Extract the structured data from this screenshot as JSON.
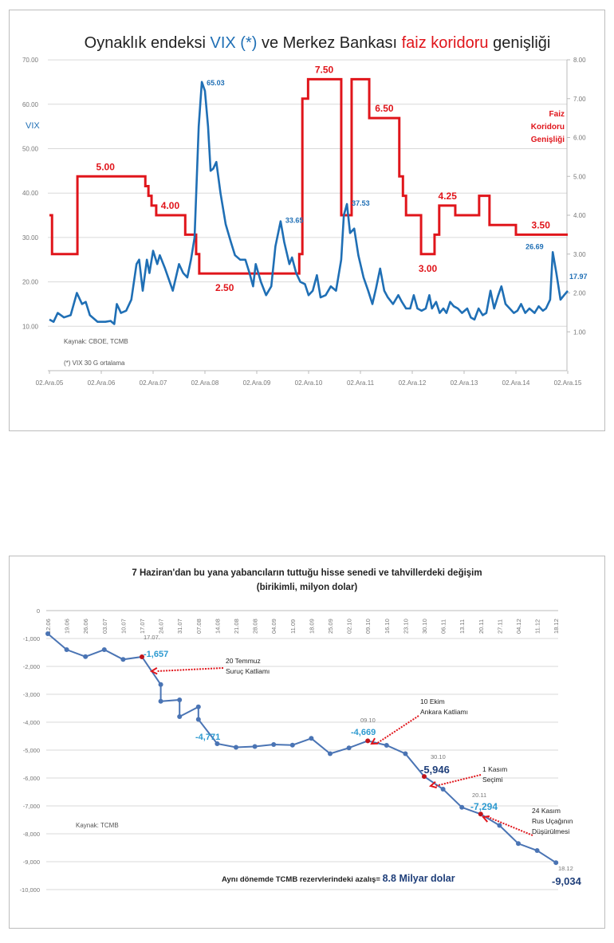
{
  "chart_data": [
    {
      "type": "line",
      "title_parts": [
        "Oynaklık endeksi ",
        "VIX (*)",
        " ve Merkez Bankası ",
        "faiz koridoru",
        " genişliği"
      ],
      "ylabel": "VIX",
      "y2label_lines": [
        "Faiz",
        "Koridoru",
        "Genişliği"
      ],
      "ylim": [
        0,
        70
      ],
      "y2lim": [
        0,
        8
      ],
      "y_ticks": [
        "10.00",
        "20.00",
        "30.00",
        "40.00",
        "50.00",
        "60.00",
        "70.00"
      ],
      "y2_ticks": [
        "1.00",
        "2.00",
        "3.00",
        "4.00",
        "5.00",
        "6.00",
        "7.00",
        "8.00"
      ],
      "x_ticks": [
        "02.Ara.05",
        "02.Ara.06",
        "02.Ara.07",
        "02.Ara.08",
        "02.Ara.09",
        "02.Ara.10",
        "02.Ara.11",
        "02.Ara.12",
        "02.Ara.13",
        "02.Ara.14",
        "02.Ara.15"
      ],
      "xlim": [
        2005.92,
        2015.92
      ],
      "grid": true,
      "colors": {
        "vix": "#1f6fb5",
        "corridor": "#e0151b"
      },
      "series": [
        {
          "name": "VIX",
          "axis": "left",
          "points": [
            [
              2005.92,
              11.5
            ],
            [
              2006.0,
              11
            ],
            [
              2006.08,
              13
            ],
            [
              2006.2,
              12
            ],
            [
              2006.33,
              12.5
            ],
            [
              2006.45,
              17.5
            ],
            [
              2006.55,
              15
            ],
            [
              2006.62,
              15.5
            ],
            [
              2006.7,
              12.5
            ],
            [
              2006.85,
              11
            ],
            [
              2007.0,
              11
            ],
            [
              2007.1,
              11.2
            ],
            [
              2007.17,
              10.5
            ],
            [
              2007.22,
              15
            ],
            [
              2007.3,
              13
            ],
            [
              2007.4,
              13.5
            ],
            [
              2007.5,
              16
            ],
            [
              2007.6,
              24
            ],
            [
              2007.65,
              25
            ],
            [
              2007.72,
              18
            ],
            [
              2007.8,
              25
            ],
            [
              2007.85,
              22
            ],
            [
              2007.92,
              27
            ],
            [
              2008.0,
              24
            ],
            [
              2008.05,
              26
            ],
            [
              2008.15,
              23
            ],
            [
              2008.3,
              18
            ],
            [
              2008.42,
              24
            ],
            [
              2008.5,
              22
            ],
            [
              2008.58,
              21
            ],
            [
              2008.65,
              25
            ],
            [
              2008.72,
              30
            ],
            [
              2008.8,
              55
            ],
            [
              2008.86,
              65.03
            ],
            [
              2008.92,
              63
            ],
            [
              2008.98,
              55
            ],
            [
              2009.03,
              45
            ],
            [
              2009.08,
              45.5
            ],
            [
              2009.14,
              47
            ],
            [
              2009.22,
              40
            ],
            [
              2009.32,
              33
            ],
            [
              2009.42,
              29
            ],
            [
              2009.5,
              26
            ],
            [
              2009.6,
              25
            ],
            [
              2009.7,
              25
            ],
            [
              2009.78,
              22
            ],
            [
              2009.85,
              19
            ],
            [
              2009.9,
              24
            ],
            [
              2010.0,
              20
            ],
            [
              2010.1,
              17
            ],
            [
              2010.2,
              19
            ],
            [
              2010.28,
              28
            ],
            [
              2010.38,
              33.65
            ],
            [
              2010.45,
              29
            ],
            [
              2010.55,
              24
            ],
            [
              2010.6,
              25.5
            ],
            [
              2010.68,
              22
            ],
            [
              2010.76,
              20
            ],
            [
              2010.85,
              19.5
            ],
            [
              2010.92,
              17
            ],
            [
              2011.0,
              18
            ],
            [
              2011.08,
              21.5
            ],
            [
              2011.15,
              16.5
            ],
            [
              2011.25,
              17
            ],
            [
              2011.35,
              19
            ],
            [
              2011.45,
              18
            ],
            [
              2011.55,
              25
            ],
            [
              2011.6,
              35
            ],
            [
              2011.66,
              37.53
            ],
            [
              2011.72,
              31
            ],
            [
              2011.8,
              32
            ],
            [
              2011.88,
              26
            ],
            [
              2011.98,
              21
            ],
            [
              2012.07,
              18
            ],
            [
              2012.15,
              15
            ],
            [
              2012.22,
              18.5
            ],
            [
              2012.3,
              23
            ],
            [
              2012.38,
              18
            ],
            [
              2012.45,
              16.5
            ],
            [
              2012.55,
              15
            ],
            [
              2012.65,
              17
            ],
            [
              2012.72,
              15.5
            ],
            [
              2012.8,
              14
            ],
            [
              2012.88,
              14
            ],
            [
              2012.95,
              17
            ],
            [
              2013.02,
              14
            ],
            [
              2013.1,
              13.5
            ],
            [
              2013.18,
              14
            ],
            [
              2013.25,
              17
            ],
            [
              2013.3,
              14
            ],
            [
              2013.38,
              15.5
            ],
            [
              2013.45,
              13
            ],
            [
              2013.52,
              14
            ],
            [
              2013.58,
              13
            ],
            [
              2013.65,
              15.5
            ],
            [
              2013.72,
              14.5
            ],
            [
              2013.8,
              14
            ],
            [
              2013.88,
              13
            ],
            [
              2013.98,
              14
            ],
            [
              2014.05,
              12
            ],
            [
              2014.12,
              11.5
            ],
            [
              2014.2,
              14
            ],
            [
              2014.28,
              12.5
            ],
            [
              2014.35,
              13
            ],
            [
              2014.43,
              18
            ],
            [
              2014.5,
              14
            ],
            [
              2014.58,
              17
            ],
            [
              2014.64,
              19
            ],
            [
              2014.72,
              15
            ],
            [
              2014.8,
              14
            ],
            [
              2014.88,
              13
            ],
            [
              2014.95,
              13.5
            ],
            [
              2015.02,
              15
            ],
            [
              2015.1,
              13
            ],
            [
              2015.18,
              14
            ],
            [
              2015.28,
              13
            ],
            [
              2015.36,
              14.5
            ],
            [
              2015.44,
              13.5
            ],
            [
              2015.5,
              14
            ],
            [
              2015.58,
              16
            ],
            [
              2015.63,
              26.69
            ],
            [
              2015.7,
              22
            ],
            [
              2015.78,
              16
            ],
            [
              2015.85,
              17
            ],
            [
              2015.92,
              17.97
            ]
          ]
        },
        {
          "name": "Faiz koridoru genişliği",
          "axis": "right",
          "step": true,
          "points": [
            [
              2005.92,
              4.0
            ],
            [
              2005.97,
              3.0
            ],
            [
              2006.46,
              5.0
            ],
            [
              2007.77,
              4.75
            ],
            [
              2007.83,
              4.5
            ],
            [
              2007.89,
              4.25
            ],
            [
              2007.98,
              4.0
            ],
            [
              2008.54,
              3.5
            ],
            [
              2008.75,
              3.0
            ],
            [
              2008.81,
              2.5
            ],
            [
              2010.74,
              3.0
            ],
            [
              2010.8,
              7.0
            ],
            [
              2010.91,
              7.5
            ],
            [
              2011.55,
              4.0
            ],
            [
              2011.75,
              7.5
            ],
            [
              2012.09,
              6.5
            ],
            [
              2012.67,
              5.0
            ],
            [
              2012.74,
              4.5
            ],
            [
              2012.8,
              4.0
            ],
            [
              2013.09,
              3.0
            ],
            [
              2013.35,
              3.5
            ],
            [
              2013.44,
              4.25
            ],
            [
              2013.75,
              4.0
            ],
            [
              2014.21,
              4.5
            ],
            [
              2014.41,
              3.75
            ],
            [
              2014.92,
              3.5
            ],
            [
              2015.92,
              3.5
            ]
          ]
        }
      ],
      "vix_labels": [
        {
          "text": "65.03",
          "x": 2008.86,
          "y": 65.03
        },
        {
          "text": "33.65",
          "x": 2010.38,
          "y": 33.65
        },
        {
          "text": "37.53",
          "x": 2011.66,
          "y": 37.53
        },
        {
          "text": "26.69",
          "x": 2015.63,
          "y": 26.69
        },
        {
          "text": "17.97",
          "x": 2015.92,
          "y": 17.97
        }
      ],
      "corridor_labels": [
        {
          "text": "5.00",
          "x": 2007.0,
          "y": 5.0
        },
        {
          "text": "4.00",
          "x": 2008.25,
          "y": 4.0
        },
        {
          "text": "2.50",
          "x": 2009.3,
          "y": 2.5
        },
        {
          "text": "7.50",
          "x": 2011.22,
          "y": 7.5
        },
        {
          "text": "6.50",
          "x": 2012.38,
          "y": 6.5
        },
        {
          "text": "3.00",
          "x": 2013.22,
          "y": 3.0
        },
        {
          "text": "4.25",
          "x": 2013.6,
          "y": 4.25
        },
        {
          "text": "3.50",
          "x": 2015.4,
          "y": 3.5
        }
      ],
      "notes": [
        "Kaynak: CBOE, TCMB",
        "(*) VIX 30 G ortalama"
      ]
    },
    {
      "type": "line",
      "title": "7 Haziran'dan bu yana yabancıların tuttuğu hisse senedi ve tahvillerdeki değişim",
      "subtitle": "(birikimli, milyon dolar)",
      "ylim": [
        -10000,
        0
      ],
      "y_ticks": [
        "0",
        "-1,000",
        "-2,000",
        "-3,000",
        "-4,000",
        "-5,000",
        "-6,000",
        "-7,000",
        "-8,000",
        "-9,000",
        "-10,000"
      ],
      "categories": [
        "12.06",
        "19.06",
        "26.06",
        "03.07",
        "10.07",
        "17.07",
        "24.07",
        "31.07",
        "07.08",
        "14.08",
        "21.08",
        "28.08",
        "04.09",
        "11.09",
        "18.09",
        "25.09",
        "02.10",
        "09.10",
        "16.10",
        "23.10",
        "30.10",
        "06.11",
        "13.11",
        "20.11",
        "27.11",
        "04.12",
        "11.12",
        "18.12"
      ],
      "grid": true,
      "colors": {
        "line": "#4a74b4",
        "highlight": "#c0141b",
        "label": "#2d9ad0",
        "dark": "#1f3f7a",
        "arrow": "#e0151b"
      },
      "points": [
        [
          0,
          -830
        ],
        [
          1,
          -1400
        ],
        [
          2,
          -1650
        ],
        [
          3,
          -1400
        ],
        [
          4,
          -1750
        ],
        [
          5,
          -1657
        ],
        [
          6,
          -2650
        ],
        [
          6,
          -3250
        ],
        [
          7,
          -3200
        ],
        [
          7,
          -3800
        ],
        [
          8,
          -3450
        ],
        [
          8,
          -3900
        ],
        [
          9,
          -4771
        ],
        [
          10,
          -4900
        ],
        [
          11,
          -4870
        ],
        [
          12,
          -4800
        ],
        [
          13,
          -4820
        ],
        [
          14,
          -4580
        ],
        [
          15,
          -5130
        ],
        [
          16,
          -4920
        ],
        [
          17,
          -4669
        ],
        [
          18,
          -4830
        ],
        [
          19,
          -5130
        ],
        [
          20,
          -5946
        ],
        [
          21,
          -6400
        ],
        [
          22,
          -7050
        ],
        [
          23,
          -7294
        ],
        [
          24,
          -7700
        ],
        [
          25,
          -8350
        ],
        [
          26,
          -8600
        ],
        [
          27,
          -9034
        ]
      ],
      "highlighted_points": [
        5,
        17,
        20,
        23
      ],
      "value_labels": [
        {
          "date": "17.07.",
          "value": "-1,657",
          "idx": 5
        },
        {
          "date": "",
          "value": "-4,771",
          "idx": 9
        },
        {
          "date": "09.10",
          "value": "-4,669",
          "idx": 17
        },
        {
          "date": "30.10",
          "value": "-5,946",
          "idx": 20
        },
        {
          "date": "20.11",
          "value": "-7,294",
          "idx": 23
        },
        {
          "date": "18.12",
          "value": "-9,034",
          "idx": 27
        }
      ],
      "events": [
        {
          "lines": [
            "20 Temmuz",
            "Suruç Katliamı"
          ]
        },
        {
          "lines": [
            "10 Ekim",
            "Ankara Katliamı"
          ]
        },
        {
          "lines": [
            "1 Kasım",
            "Seçimi"
          ]
        },
        {
          "lines": [
            "24 Kasım",
            "Rus Uçağının",
            "Düşürülmesi"
          ]
        }
      ],
      "note_prefix": "Aynı dönemde TCMB rezervlerindeki azalış= ",
      "note_value": "8.8 Milyar dolar",
      "source": "Kaynak: TCMB"
    }
  ]
}
